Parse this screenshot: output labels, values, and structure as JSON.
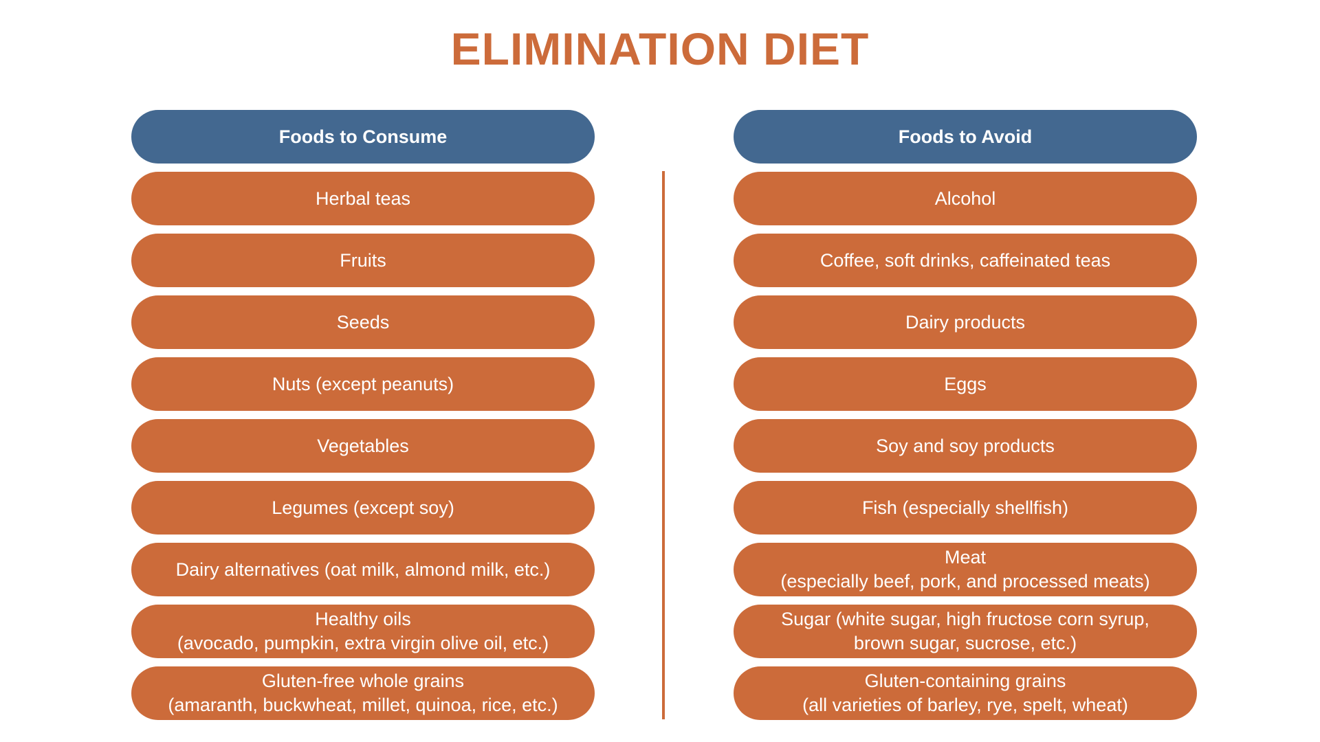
{
  "title": "ELIMINATION DIET",
  "colors": {
    "accent": "#cc6b3a",
    "header": "#436890",
    "text_on_pill": "#ffffff",
    "background": "#ffffff"
  },
  "consume": {
    "header": "Foods to Consume",
    "items": [
      "Herbal teas",
      "Fruits",
      "Seeds",
      "Nuts (except peanuts)",
      "Vegetables",
      "Legumes (except soy)",
      "Dairy alternatives (oat milk, almond milk, etc.)",
      "Healthy oils\n(avocado, pumpkin, extra virgin olive oil, etc.)",
      "Gluten-free whole grains\n(amaranth, buckwheat, millet, quinoa, rice, etc.)"
    ]
  },
  "avoid": {
    "header": "Foods to Avoid",
    "items": [
      "Alcohol",
      "Coffee, soft drinks, caffeinated teas",
      "Dairy products",
      "Eggs",
      "Soy and soy products",
      "Fish (especially shellfish)",
      "Meat\n(especially beef, pork, and processed meats)",
      "Sugar (white sugar, high fructose corn syrup,\nbrown sugar, sucrose, etc.)",
      "Gluten-containing grains\n(all varieties of barley, rye, spelt, wheat)"
    ]
  }
}
